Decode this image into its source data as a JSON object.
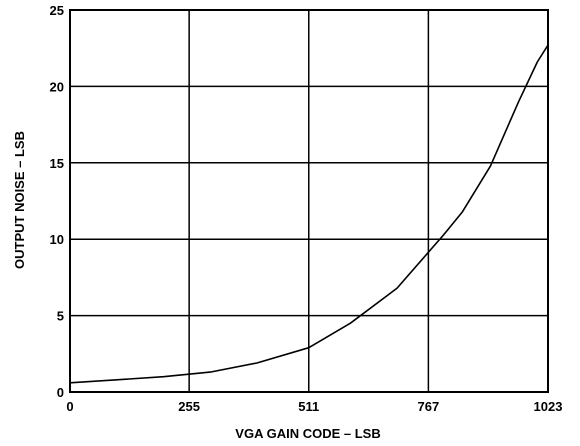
{
  "chart_data": {
    "type": "line",
    "title": "",
    "xlabel": "VGA GAIN CODE – LSB",
    "ylabel": "OUTPUT NOISE – LSB",
    "xlim": [
      0,
      1023
    ],
    "ylim": [
      0,
      25
    ],
    "xticks": [
      0,
      255,
      511,
      767,
      1023
    ],
    "xtick_labels": [
      "0",
      "255",
      "511",
      "767",
      "1023"
    ],
    "yticks": [
      0,
      5,
      10,
      15,
      20,
      25
    ],
    "ytick_labels": [
      "0",
      "5",
      "10",
      "15",
      "20",
      "25"
    ],
    "grid": true,
    "legend": "none",
    "line_color": "#000000",
    "series": [
      {
        "x": [
          0,
          100,
          200,
          300,
          400,
          511,
          600,
          700,
          800,
          840,
          900,
          960,
          1000,
          1023
        ],
        "y": [
          0.6,
          0.8,
          1.0,
          1.3,
          1.9,
          2.9,
          4.5,
          6.8,
          10.3,
          11.8,
          14.8,
          19.0,
          21.6,
          22.7
        ]
      }
    ]
  }
}
